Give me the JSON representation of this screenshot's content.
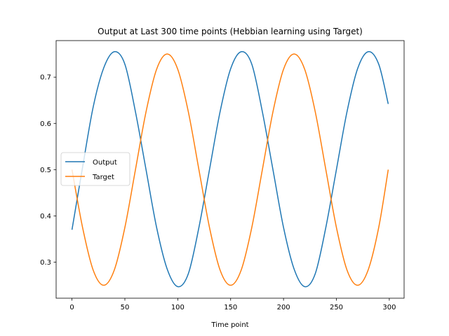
{
  "chart_data": {
    "type": "line",
    "title": "Output at Last 300 time points (Hebbian learning using Target)",
    "xlabel": "Time point",
    "ylabel": "",
    "xlim": [
      -15,
      314
    ],
    "ylim": [
      0.222,
      0.779
    ],
    "xticks": [
      0,
      50,
      100,
      150,
      200,
      250,
      300
    ],
    "yticks": [
      0.3,
      0.4,
      0.5,
      0.6,
      0.7
    ],
    "legend": {
      "position": "center-left"
    },
    "grid": false,
    "series": [
      {
        "name": "Output",
        "color": "#1f77b4",
        "x": [
          0,
          10,
          20,
          30,
          40,
          50,
          60,
          70,
          80,
          90,
          100,
          110,
          120,
          130,
          140,
          150,
          160,
          170,
          180,
          190,
          200,
          210,
          220,
          230,
          240,
          250,
          260,
          270,
          280,
          290,
          299
        ],
        "y": [
          0.37,
          0.505,
          0.635,
          0.72,
          0.755,
          0.728,
          0.625,
          0.5,
          0.375,
          0.285,
          0.247,
          0.275,
          0.375,
          0.5,
          0.625,
          0.718,
          0.755,
          0.728,
          0.625,
          0.5,
          0.375,
          0.285,
          0.247,
          0.275,
          0.375,
          0.5,
          0.625,
          0.718,
          0.755,
          0.728,
          0.642
        ]
      },
      {
        "name": "Target",
        "color": "#ff7f0e",
        "x": [
          0,
          10,
          20,
          30,
          40,
          50,
          60,
          70,
          80,
          90,
          100,
          110,
          120,
          130,
          140,
          150,
          160,
          170,
          180,
          190,
          200,
          210,
          220,
          230,
          240,
          250,
          260,
          270,
          280,
          290,
          299
        ],
        "y": [
          0.5,
          0.375,
          0.283,
          0.25,
          0.283,
          0.375,
          0.5,
          0.625,
          0.717,
          0.75,
          0.717,
          0.625,
          0.5,
          0.375,
          0.283,
          0.25,
          0.283,
          0.375,
          0.5,
          0.625,
          0.717,
          0.75,
          0.717,
          0.625,
          0.5,
          0.375,
          0.283,
          0.25,
          0.283,
          0.375,
          0.5
        ]
      }
    ]
  }
}
